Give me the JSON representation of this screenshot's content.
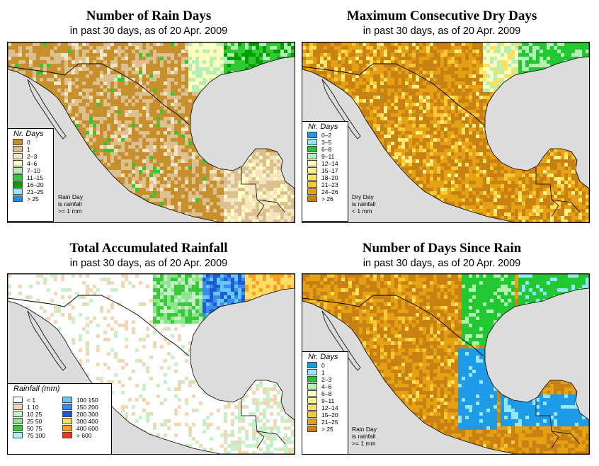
{
  "panels": [
    {
      "title": "Number of Rain Days",
      "subtitle": "in past 30 days, as of  20 Apr. 2009",
      "legend": {
        "title": "Nr. Days",
        "items": [
          {
            "label": "0",
            "color": "#c8902d"
          },
          {
            "label": "1",
            "color": "#dcc08f"
          },
          {
            "label": "2–3",
            "color": "#f5e4c2"
          },
          {
            "label": "4–6",
            "color": "#ffffc0"
          },
          {
            "label": "7–10",
            "color": "#b4f0b4"
          },
          {
            "label": "11–15",
            "color": "#32c832"
          },
          {
            "label": "16–20",
            "color": "#00a000"
          },
          {
            "label": "21–25",
            "color": "#96e6fa"
          },
          {
            "label": "> 25",
            "color": "#1e8ce6"
          }
        ],
        "note": [
          "Rain Day",
          "is rainfall",
          ">= 1 mm"
        ]
      }
    },
    {
      "title": "Maximum Consecutive Dry Days",
      "subtitle": "in past 30 days, as of  20 Apr. 2009",
      "legend": {
        "title": "Nr. Days",
        "items": [
          {
            "label": "0–2",
            "color": "#1e9be6"
          },
          {
            "label": "3–5",
            "color": "#96e6fa"
          },
          {
            "label": "6–8",
            "color": "#22c832"
          },
          {
            "label": "9–11",
            "color": "#b4f0b4"
          },
          {
            "label": "12–14",
            "color": "#ffffc0"
          },
          {
            "label": "15–17",
            "color": "#fff08c"
          },
          {
            "label": "18–20",
            "color": "#ffe15a"
          },
          {
            "label": "21–23",
            "color": "#fac832"
          },
          {
            "label": "24–26",
            "color": "#e6a014"
          },
          {
            "label": "> 26",
            "color": "#c88214"
          }
        ],
        "note": [
          "Dry Day",
          "is rainfall",
          "< 1 mm"
        ]
      }
    },
    {
      "title": "Total Accumulated Rainfall",
      "subtitle": "in past 30 days, as of  20 Apr. 2009",
      "legend": {
        "title": "Rainfall (mm)",
        "items_left": [
          {
            "label": "< 1",
            "color": "#ffffff"
          },
          {
            "label": "1   10",
            "color": "#f0d8b4"
          },
          {
            "label": "10   25",
            "color": "#c8f0c8"
          },
          {
            "label": "25   50",
            "color": "#8ce68c"
          },
          {
            "label": "50   75",
            "color": "#3cc83c"
          },
          {
            "label": "75  100",
            "color": "#aaf0ff"
          }
        ],
        "items_right": [
          {
            "label": "100  150",
            "color": "#64c8fa"
          },
          {
            "label": "150  200",
            "color": "#3c8cf0"
          },
          {
            "label": "200  300",
            "color": "#1e5ad2"
          },
          {
            "label": "300  400",
            "color": "#ffdc64"
          },
          {
            "label": "400  600",
            "color": "#faa01e"
          },
          {
            "label": "> 600",
            "color": "#f03c14"
          }
        ]
      }
    },
    {
      "title": "Number of Days Since Rain",
      "subtitle": "in past 30 days, as of  20 Apr. 2009",
      "legend": {
        "title": "Nr. Days",
        "items": [
          {
            "label": "0",
            "color": "#1e9be6"
          },
          {
            "label": "1",
            "color": "#96e6fa"
          },
          {
            "label": "2–3",
            "color": "#22c832"
          },
          {
            "label": "4–6",
            "color": "#b4f0b4"
          },
          {
            "label": "6–8",
            "color": "#ffffc0"
          },
          {
            "label": "9–11",
            "color": "#fff08c"
          },
          {
            "label": "12–14",
            "color": "#ffe15a"
          },
          {
            "label": "15–20",
            "color": "#fac832"
          },
          {
            "label": "21–25",
            "color": "#e6a014"
          },
          {
            "label": "> 25",
            "color": "#c88214"
          }
        ],
        "note": [
          "Rain Day",
          "is rainfall",
          ">= 1 mm"
        ]
      }
    }
  ]
}
